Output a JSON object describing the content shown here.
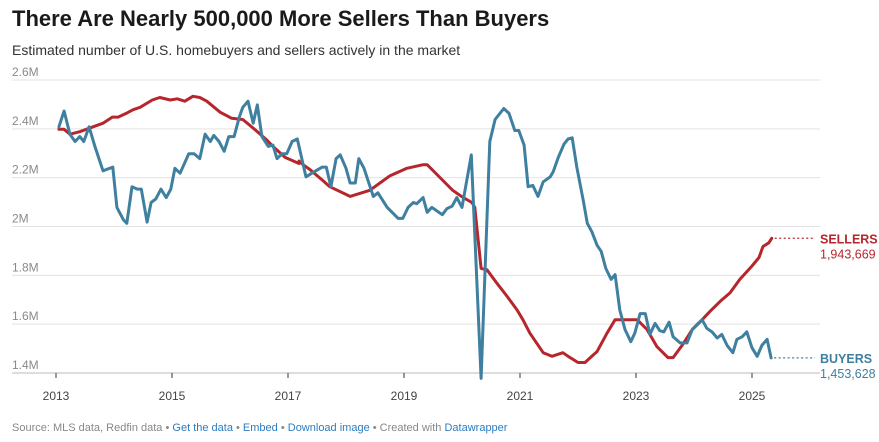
{
  "title": "There Are Nearly 500,000 More Sellers Than Buyers",
  "subtitle": "Estimated number of U.S. homebuyers and sellers actively in the market",
  "footer": {
    "source": "Source: MLS data, Redfin data",
    "sep": " • ",
    "get_data": "Get the data",
    "embed": "Embed",
    "download": "Download image",
    "created_with": "Created with",
    "datawrapper": "Datawrapper"
  },
  "chart_data": {
    "type": "line",
    "title": "There Are Nearly 500,000 More Sellers Than Buyers",
    "xlabel": "",
    "ylabel": "",
    "xlim": [
      2013,
      2026.2
    ],
    "ylim": [
      1400000,
      2600000
    ],
    "grid": true,
    "x_ticks": [
      2013,
      2015,
      2017,
      2019,
      2021,
      2023,
      2025
    ],
    "x_tick_labels": [
      "2013",
      "2015",
      "2017",
      "2019",
      "2021",
      "2023",
      "2025"
    ],
    "y_ticks": [
      1400000,
      1600000,
      1800000,
      2000000,
      2200000,
      2400000,
      2600000
    ],
    "y_tick_labels": [
      "1.4M",
      "1.6M",
      "1.8M",
      "2M",
      "2.2M",
      "2.4M",
      "2.6M"
    ],
    "series": [
      {
        "name": "SELLERS",
        "end_label": "1,943,669",
        "color": "#b5272d",
        "points": [
          [
            2013.05,
            2.39
          ],
          [
            2013.14,
            2.39
          ],
          [
            2013.24,
            2.37
          ],
          [
            2013.41,
            2.38
          ],
          [
            2013.64,
            2.4
          ],
          [
            2013.81,
            2.415
          ],
          [
            2013.97,
            2.44
          ],
          [
            2014.07,
            2.44
          ],
          [
            2014.21,
            2.455
          ],
          [
            2014.33,
            2.47
          ],
          [
            2014.45,
            2.48
          ],
          [
            2014.66,
            2.51
          ],
          [
            2014.79,
            2.52
          ],
          [
            2014.97,
            2.51
          ],
          [
            2015.09,
            2.515
          ],
          [
            2015.22,
            2.505
          ],
          [
            2015.36,
            2.525
          ],
          [
            2015.48,
            2.52
          ],
          [
            2015.6,
            2.505
          ],
          [
            2015.83,
            2.46
          ],
          [
            2016.03,
            2.435
          ],
          [
            2016.22,
            2.43
          ],
          [
            2016.4,
            2.395
          ],
          [
            2016.64,
            2.345
          ],
          [
            2016.74,
            2.32
          ],
          [
            2016.95,
            2.275
          ],
          [
            2017.19,
            2.25
          ],
          [
            2017.19,
            2.26
          ],
          [
            2017.26,
            2.245
          ],
          [
            2017.38,
            2.225
          ],
          [
            2017.6,
            2.18
          ],
          [
            2017.72,
            2.155
          ],
          [
            2018.07,
            2.115
          ],
          [
            2018.41,
            2.14
          ],
          [
            2018.76,
            2.2
          ],
          [
            2019.05,
            2.23
          ],
          [
            2019.33,
            2.245
          ],
          [
            2019.4,
            2.245
          ],
          [
            2019.67,
            2.18
          ],
          [
            2019.84,
            2.14
          ],
          [
            2020.02,
            2.11
          ],
          [
            2020.17,
            2.09
          ],
          [
            2020.22,
            2.07
          ],
          [
            2020.33,
            1.82
          ],
          [
            2020.43,
            1.815
          ],
          [
            2020.6,
            1.76
          ],
          [
            2020.78,
            1.705
          ],
          [
            2020.95,
            1.65
          ],
          [
            2021.05,
            1.61
          ],
          [
            2021.17,
            1.555
          ],
          [
            2021.4,
            1.475
          ],
          [
            2021.55,
            1.46
          ],
          [
            2021.74,
            1.475
          ],
          [
            2021.83,
            1.46
          ],
          [
            2022.0,
            1.435
          ],
          [
            2022.12,
            1.435
          ],
          [
            2022.33,
            1.48
          ],
          [
            2022.5,
            1.555
          ],
          [
            2022.64,
            1.61
          ],
          [
            2022.84,
            1.61
          ],
          [
            2023.02,
            1.61
          ],
          [
            2023.19,
            1.57
          ],
          [
            2023.36,
            1.5
          ],
          [
            2023.55,
            1.455
          ],
          [
            2023.64,
            1.455
          ],
          [
            2023.81,
            1.51
          ],
          [
            2023.97,
            1.57
          ],
          [
            2024.1,
            1.6
          ],
          [
            2024.28,
            1.645
          ],
          [
            2024.45,
            1.685
          ],
          [
            2024.62,
            1.72
          ],
          [
            2024.79,
            1.775
          ],
          [
            2025.0,
            1.83
          ],
          [
            2025.12,
            1.865
          ],
          [
            2025.19,
            1.91
          ],
          [
            2025.29,
            1.925
          ],
          [
            2025.34,
            1.943669
          ]
        ]
      },
      {
        "name": "BUYERS",
        "end_label": "1,453,628",
        "color": "#3f7f9f",
        "points": [
          [
            2013.05,
            2.4
          ],
          [
            2013.14,
            2.465
          ],
          [
            2013.24,
            2.37
          ],
          [
            2013.33,
            2.34
          ],
          [
            2013.41,
            2.36
          ],
          [
            2013.48,
            2.34
          ],
          [
            2013.57,
            2.4
          ],
          [
            2013.67,
            2.32
          ],
          [
            2013.81,
            2.22
          ],
          [
            2013.98,
            2.235
          ],
          [
            2014.05,
            2.07
          ],
          [
            2014.16,
            2.02
          ],
          [
            2014.22,
            2.005
          ],
          [
            2014.31,
            2.155
          ],
          [
            2014.4,
            2.145
          ],
          [
            2014.47,
            2.145
          ],
          [
            2014.57,
            2.01
          ],
          [
            2014.64,
            2.09
          ],
          [
            2014.72,
            2.105
          ],
          [
            2014.81,
            2.145
          ],
          [
            2014.9,
            2.11
          ],
          [
            2014.98,
            2.145
          ],
          [
            2015.05,
            2.23
          ],
          [
            2015.14,
            2.21
          ],
          [
            2015.29,
            2.29
          ],
          [
            2015.38,
            2.29
          ],
          [
            2015.48,
            2.27
          ],
          [
            2015.57,
            2.37
          ],
          [
            2015.66,
            2.34
          ],
          [
            2015.72,
            2.365
          ],
          [
            2015.81,
            2.34
          ],
          [
            2015.9,
            2.3
          ],
          [
            2015.98,
            2.36
          ],
          [
            2016.07,
            2.36
          ],
          [
            2016.16,
            2.44
          ],
          [
            2016.22,
            2.48
          ],
          [
            2016.31,
            2.505
          ],
          [
            2016.4,
            2.415
          ],
          [
            2016.47,
            2.49
          ],
          [
            2016.55,
            2.36
          ],
          [
            2016.66,
            2.32
          ],
          [
            2016.74,
            2.325
          ],
          [
            2016.81,
            2.27
          ],
          [
            2016.9,
            2.29
          ],
          [
            2016.98,
            2.29
          ],
          [
            2017.07,
            2.34
          ],
          [
            2017.16,
            2.35
          ],
          [
            2017.31,
            2.195
          ],
          [
            2017.41,
            2.21
          ],
          [
            2017.59,
            2.235
          ],
          [
            2017.66,
            2.235
          ],
          [
            2017.74,
            2.155
          ],
          [
            2017.83,
            2.27
          ],
          [
            2017.9,
            2.285
          ],
          [
            2018.0,
            2.23
          ],
          [
            2018.07,
            2.17
          ],
          [
            2018.16,
            2.17
          ],
          [
            2018.22,
            2.27
          ],
          [
            2018.31,
            2.23
          ],
          [
            2018.47,
            2.115
          ],
          [
            2018.55,
            2.13
          ],
          [
            2018.71,
            2.07
          ],
          [
            2018.9,
            2.025
          ],
          [
            2018.98,
            2.025
          ],
          [
            2019.07,
            2.07
          ],
          [
            2019.16,
            2.09
          ],
          [
            2019.22,
            2.085
          ],
          [
            2019.33,
            2.11
          ],
          [
            2019.4,
            2.05
          ],
          [
            2019.48,
            2.07
          ],
          [
            2019.66,
            2.04
          ],
          [
            2019.74,
            2.065
          ],
          [
            2019.83,
            2.075
          ],
          [
            2019.91,
            2.11
          ],
          [
            2020.0,
            2.07
          ],
          [
            2020.16,
            2.285
          ],
          [
            2020.33,
            1.37
          ],
          [
            2020.48,
            2.34
          ],
          [
            2020.57,
            2.43
          ],
          [
            2020.72,
            2.475
          ],
          [
            2020.81,
            2.455
          ],
          [
            2020.91,
            2.385
          ],
          [
            2020.98,
            2.385
          ],
          [
            2021.07,
            2.325
          ],
          [
            2021.14,
            2.155
          ],
          [
            2021.22,
            2.16
          ],
          [
            2021.31,
            2.115
          ],
          [
            2021.4,
            2.175
          ],
          [
            2021.52,
            2.195
          ],
          [
            2021.57,
            2.215
          ],
          [
            2021.66,
            2.275
          ],
          [
            2021.76,
            2.33
          ],
          [
            2021.83,
            2.35
          ],
          [
            2021.9,
            2.355
          ],
          [
            2021.98,
            2.235
          ],
          [
            2022.09,
            2.1
          ],
          [
            2022.16,
            2.005
          ],
          [
            2022.24,
            1.97
          ],
          [
            2022.33,
            1.915
          ],
          [
            2022.4,
            1.89
          ],
          [
            2022.48,
            1.82
          ],
          [
            2022.57,
            1.775
          ],
          [
            2022.64,
            1.795
          ],
          [
            2022.72,
            1.65
          ],
          [
            2022.81,
            1.57
          ],
          [
            2022.91,
            1.52
          ],
          [
            2022.98,
            1.555
          ],
          [
            2023.07,
            1.635
          ],
          [
            2023.16,
            1.635
          ],
          [
            2023.24,
            1.55
          ],
          [
            2023.33,
            1.595
          ],
          [
            2023.41,
            1.565
          ],
          [
            2023.48,
            1.56
          ],
          [
            2023.57,
            1.6
          ],
          [
            2023.64,
            1.54
          ],
          [
            2023.76,
            1.515
          ],
          [
            2023.88,
            1.515
          ],
          [
            2023.97,
            1.57
          ],
          [
            2024.05,
            1.59
          ],
          [
            2024.14,
            1.61
          ],
          [
            2024.22,
            1.575
          ],
          [
            2024.31,
            1.56
          ],
          [
            2024.4,
            1.535
          ],
          [
            2024.48,
            1.55
          ],
          [
            2024.57,
            1.505
          ],
          [
            2024.67,
            1.475
          ],
          [
            2024.74,
            1.53
          ],
          [
            2024.83,
            1.54
          ],
          [
            2024.91,
            1.56
          ],
          [
            2025.0,
            1.495
          ],
          [
            2025.09,
            1.46
          ],
          [
            2025.17,
            1.505
          ],
          [
            2025.26,
            1.53
          ],
          [
            2025.33,
            1.453628
          ]
        ]
      }
    ]
  }
}
